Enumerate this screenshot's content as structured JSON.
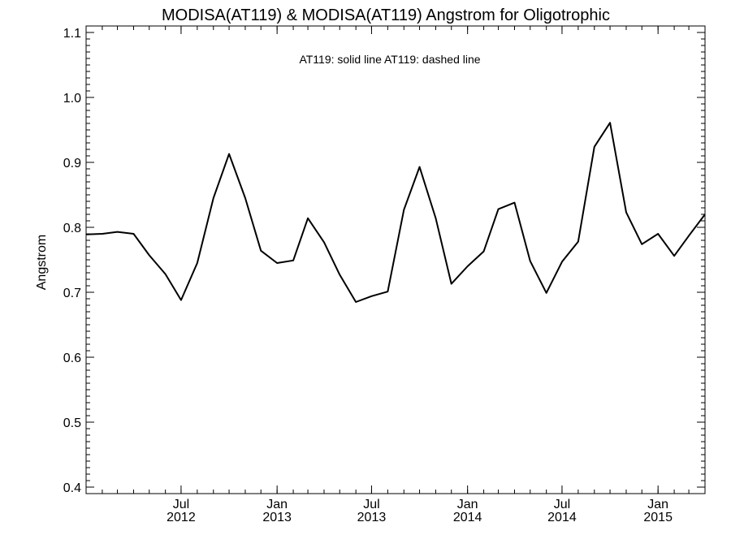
{
  "chart_data": {
    "type": "line",
    "title": "MODISA(AT119) & MODISA(AT119)  Angstrom for Oligotrophic",
    "legend_text": "AT119: solid line   AT119: dashed line",
    "ylabel": "Angstrom",
    "xlabel": "",
    "ylim": [
      0.39,
      1.11
    ],
    "yticks": [
      "0.4",
      "0.5",
      "0.6",
      "0.7",
      "0.8",
      "0.9",
      "1.0",
      "1.1"
    ],
    "xlim": [
      "2012-01-01",
      "2015-04-01"
    ],
    "xticks": [
      {
        "month": "Jul",
        "year": "2012",
        "date": "2012-07-01"
      },
      {
        "month": "Jan",
        "year": "2013",
        "date": "2013-01-01"
      },
      {
        "month": "Jul",
        "year": "2013",
        "date": "2013-07-01"
      },
      {
        "month": "Jan",
        "year": "2014",
        "date": "2014-01-01"
      },
      {
        "month": "Jul",
        "year": "2014",
        "date": "2014-07-01"
      },
      {
        "month": "Jan",
        "year": "2015",
        "date": "2015-01-01"
      }
    ],
    "grid": false,
    "series": [
      {
        "style": "solid",
        "color": "#000000",
        "x": [
          "2012-01-01",
          "2012-02-01",
          "2012-03-01",
          "2012-04-01",
          "2012-05-01",
          "2012-06-01",
          "2012-07-01",
          "2012-08-01",
          "2012-09-01",
          "2012-10-01",
          "2012-11-01",
          "2012-12-01",
          "2013-01-01",
          "2013-02-01",
          "2013-03-01",
          "2013-04-01",
          "2013-05-01",
          "2013-06-01",
          "2013-07-01",
          "2013-08-01",
          "2013-09-01",
          "2013-10-01",
          "2013-11-01",
          "2013-12-01",
          "2014-01-01",
          "2014-02-01",
          "2014-03-01",
          "2014-04-01",
          "2014-05-01",
          "2014-06-01",
          "2014-07-01",
          "2014-08-01",
          "2014-09-01",
          "2014-10-01",
          "2014-11-01",
          "2014-12-01",
          "2015-01-01",
          "2015-02-01",
          "2015-03-01",
          "2015-04-01"
        ],
        "y": [
          0.789,
          0.79,
          0.793,
          0.79,
          0.757,
          0.728,
          0.688,
          0.745,
          0.845,
          0.913,
          0.845,
          0.764,
          0.745,
          0.749,
          0.814,
          0.777,
          0.727,
          0.685,
          0.694,
          0.701,
          0.827,
          0.893,
          0.814,
          0.713,
          0.74,
          0.763,
          0.828,
          0.838,
          0.748,
          0.699,
          0.747,
          0.778,
          0.924,
          0.961,
          0.823,
          0.774,
          0.79,
          0.756,
          0.787,
          0.82
        ]
      }
    ]
  }
}
